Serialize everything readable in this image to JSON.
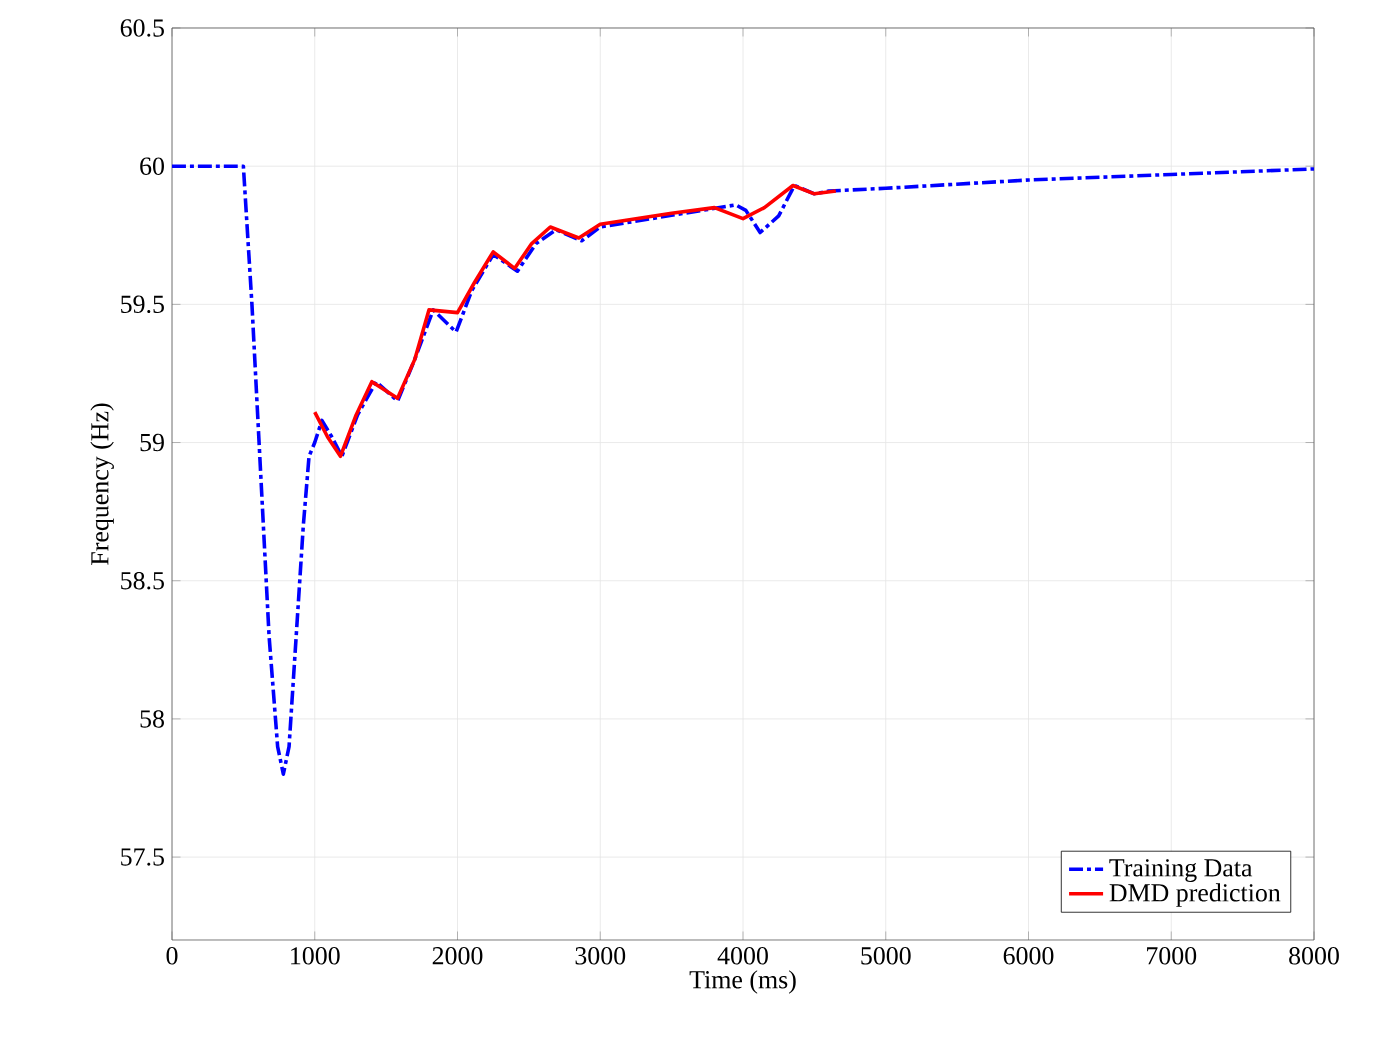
{
  "chart_data": {
    "type": "line",
    "xlabel": "Time (ms)",
    "ylabel": "Frequency (Hz)",
    "xlim": [
      0,
      8000
    ],
    "ylim": [
      57.2,
      60.5
    ],
    "xticks": [
      0,
      1000,
      2000,
      3000,
      4000,
      5000,
      6000,
      7000,
      8000
    ],
    "yticks": [
      57.5,
      58,
      58.5,
      59,
      59.5,
      60,
      60.5
    ],
    "grid": true,
    "legend": "bottom right",
    "series": [
      {
        "name": "Training Data",
        "color": "#0000ff",
        "line_style": "dashed",
        "x": [
          0,
          500,
          560,
          620,
          680,
          740,
          780,
          820,
          870,
          920,
          960,
          1000,
          1050,
          1120,
          1190,
          1300,
          1430,
          1580,
          1700,
          1830,
          1990,
          2100,
          2250,
          2420,
          2550,
          2690,
          2870,
          3000,
          3950,
          4020,
          4120,
          4250,
          4360,
          4500,
          4600,
          5000,
          6000,
          7000,
          8000
        ],
        "values": [
          60,
          60,
          59.5,
          58.9,
          58.3,
          57.9,
          57.8,
          57.9,
          58.3,
          58.7,
          58.95,
          59.0,
          59.08,
          59.02,
          58.95,
          59.1,
          59.22,
          59.15,
          59.3,
          59.48,
          59.4,
          59.55,
          59.68,
          59.62,
          59.72,
          59.77,
          59.73,
          59.78,
          59.86,
          59.84,
          59.76,
          59.82,
          59.93,
          59.9,
          59.91,
          59.92,
          59.95,
          59.97,
          59.99
        ]
      },
      {
        "name": "DMD prediction",
        "color": "#ff0000",
        "line_style": "solid",
        "x": [
          1000,
          1090,
          1180,
          1290,
          1400,
          1580,
          1700,
          1800,
          2000,
          2120,
          2250,
          2400,
          2520,
          2650,
          2850,
          3000,
          3500,
          3800,
          4000,
          4150,
          4350,
          4500,
          4650
        ],
        "values": [
          59.11,
          59.02,
          58.95,
          59.1,
          59.22,
          59.16,
          59.3,
          59.48,
          59.47,
          59.58,
          59.69,
          59.63,
          59.72,
          59.78,
          59.74,
          59.79,
          59.83,
          59.85,
          59.81,
          59.85,
          59.93,
          59.9,
          59.91
        ]
      }
    ]
  }
}
